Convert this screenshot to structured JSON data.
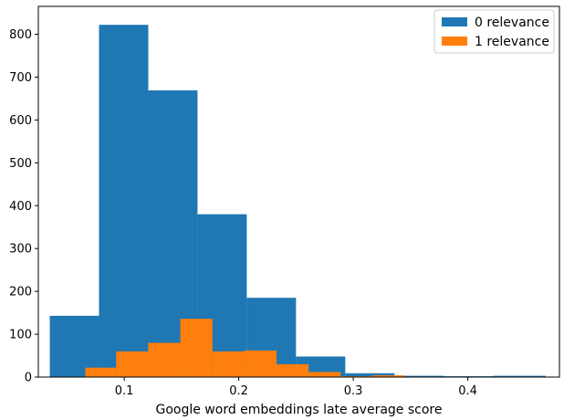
{
  "chart_data": {
    "type": "histogram",
    "title": "",
    "xlabel": "Google word embeddings late average score",
    "ylabel": "",
    "xlim": [
      0.025,
      0.48
    ],
    "ylim": [
      0,
      865
    ],
    "xticks": [
      0.1,
      0.2,
      0.3,
      0.4
    ],
    "xtick_labels": [
      "0.1",
      "0.2",
      "0.3",
      "0.4"
    ],
    "yticks": [
      0,
      100,
      200,
      300,
      400,
      500,
      600,
      700,
      800
    ],
    "ytick_labels": [
      "0",
      "100",
      "200",
      "300",
      "400",
      "500",
      "600",
      "700",
      "800"
    ],
    "grid": false,
    "legend_position": "top-right",
    "series": [
      {
        "name": "0 relevance",
        "color": "#1f77b4",
        "bin_edges": [
          0.035,
          0.078,
          0.121,
          0.164,
          0.207,
          0.25,
          0.293,
          0.336,
          0.379,
          0.422,
          0.468
        ],
        "counts": [
          143,
          822,
          669,
          380,
          185,
          48,
          9,
          3,
          2,
          3
        ]
      },
      {
        "name": "1 relevance",
        "color": "#ff7f0e",
        "bin_edges": [
          0.066,
          0.093,
          0.121,
          0.149,
          0.177,
          0.205,
          0.233,
          0.261,
          0.289,
          0.317,
          0.345
        ],
        "counts": [
          22,
          60,
          80,
          136,
          60,
          62,
          30,
          12,
          2,
          4
        ]
      }
    ]
  }
}
